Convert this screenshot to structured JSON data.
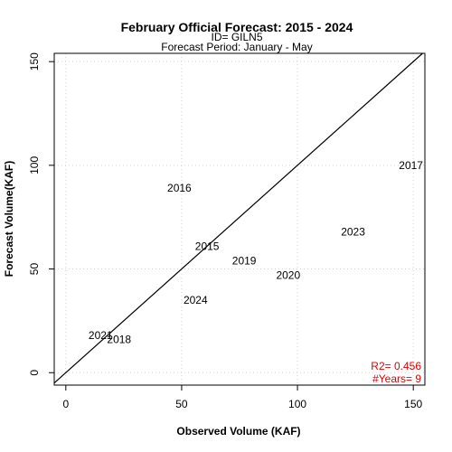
{
  "chart_data": {
    "type": "scatter",
    "title": "February Official Forecast: 2015 - 2024",
    "subtitle_lines": [
      "ID= GILN5",
      "Forecast Period:  January - May"
    ],
    "xlabel": "Observed Volume (KAF)",
    "ylabel": "Forecast Volume(KAF)",
    "xlim": [
      -5,
      155
    ],
    "ylim": [
      -6,
      154
    ],
    "x_ticks": [
      0,
      50,
      100,
      150
    ],
    "y_ticks": [
      0,
      50,
      100,
      150
    ],
    "grid": true,
    "reference_line": "1:1",
    "points": [
      {
        "label": "2015",
        "x": 61,
        "y": 61
      },
      {
        "label": "2016",
        "x": 49,
        "y": 89
      },
      {
        "label": "2017",
        "x": 149,
        "y": 100
      },
      {
        "label": "2018",
        "x": 23,
        "y": 16
      },
      {
        "label": "2019",
        "x": 77,
        "y": 54
      },
      {
        "label": "2020",
        "x": 96,
        "y": 47
      },
      {
        "label": "2021",
        "x": 15,
        "y": 18
      },
      {
        "label": "2023",
        "x": 124,
        "y": 68
      },
      {
        "label": "2024",
        "x": 56,
        "y": 35
      }
    ],
    "stats": {
      "r2": "R2=  0.456",
      "years": "#Years=  9",
      "color": "#dd0000"
    }
  }
}
